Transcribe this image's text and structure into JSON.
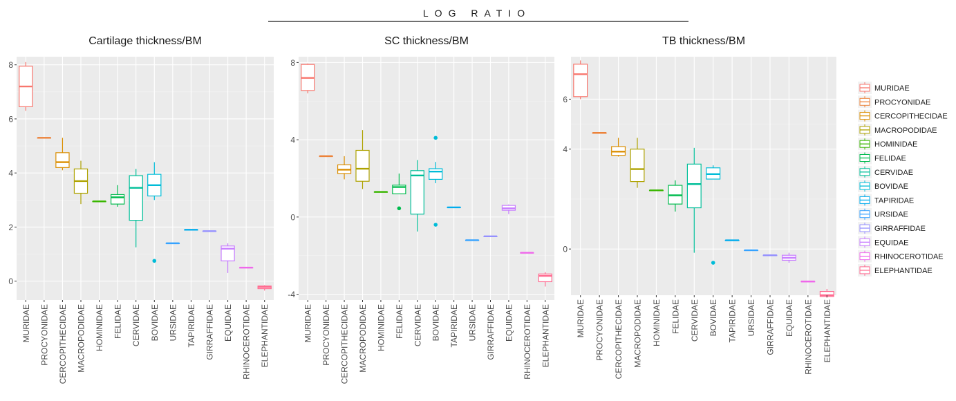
{
  "figure": {
    "title": "LOG RATIO"
  },
  "chart_data": [
    {
      "type": "boxplot",
      "title": "Cartilage thickness/BM",
      "ylim": [
        -0.7,
        8.3
      ],
      "yticks": [
        0,
        2,
        4,
        6,
        8
      ],
      "grid": true,
      "categories": [
        "MURIDAE",
        "PROCYONIDAE",
        "CERCOPITHECIDAE",
        "MACROPODIDAE",
        "HOMINIDAE",
        "FELIDAE",
        "CERVIDAE",
        "BOVIDAE",
        "URSIDAE",
        "TAPIRIDAE",
        "GIRRAFFIDAE",
        "EQUIDAE",
        "RHINOCEROTIDAE",
        "ELEPHANTIDAE"
      ],
      "boxes": [
        {
          "min": 6.3,
          "q1": 6.45,
          "median": 7.2,
          "q3": 7.95,
          "max": 8.1,
          "outliers": []
        },
        {
          "min": 5.3,
          "q1": 5.3,
          "median": 5.3,
          "q3": 5.3,
          "max": 5.3,
          "outliers": []
        },
        {
          "min": 4.1,
          "q1": 4.2,
          "median": 4.4,
          "q3": 4.75,
          "max": 5.3,
          "outliers": []
        },
        {
          "min": 2.85,
          "q1": 3.25,
          "median": 3.7,
          "q3": 4.15,
          "max": 4.45,
          "outliers": []
        },
        {
          "min": 2.95,
          "q1": 2.95,
          "median": 2.95,
          "q3": 2.95,
          "max": 2.95,
          "outliers": []
        },
        {
          "min": 2.75,
          "q1": 2.85,
          "median": 3.1,
          "q3": 3.2,
          "max": 3.55,
          "outliers": []
        },
        {
          "min": 1.25,
          "q1": 2.25,
          "median": 3.45,
          "q3": 3.9,
          "max": 4.15,
          "outliers": []
        },
        {
          "min": 3.0,
          "q1": 3.15,
          "median": 3.55,
          "q3": 3.95,
          "max": 4.4,
          "outliers": [
            0.75
          ]
        },
        {
          "min": 1.4,
          "q1": 1.4,
          "median": 1.4,
          "q3": 1.4,
          "max": 1.4,
          "outliers": []
        },
        {
          "min": 1.9,
          "q1": 1.9,
          "median": 1.9,
          "q3": 1.9,
          "max": 1.9,
          "outliers": []
        },
        {
          "min": 1.85,
          "q1": 1.85,
          "median": 1.85,
          "q3": 1.85,
          "max": 1.85,
          "outliers": []
        },
        {
          "min": 0.3,
          "q1": 0.75,
          "median": 1.2,
          "q3": 1.3,
          "max": 1.4,
          "outliers": []
        },
        {
          "min": 0.5,
          "q1": 0.5,
          "median": 0.5,
          "q3": 0.5,
          "max": 0.5,
          "outliers": []
        },
        {
          "min": -0.35,
          "q1": -0.28,
          "median": -0.22,
          "q3": -0.18,
          "max": -0.15,
          "outliers": []
        }
      ]
    },
    {
      "type": "boxplot",
      "title": "SC thickness/BM",
      "ylim": [
        -4.3,
        8.3
      ],
      "yticks": [
        -4,
        0,
        4,
        8
      ],
      "grid": true,
      "categories": [
        "MURIDAE",
        "PROCYONIDAE",
        "CERCOPITHECIDAE",
        "MACROPODIDAE",
        "HOMINIDAE",
        "FELIDAE",
        "CERVIDAE",
        "BOVIDAE",
        "TAPIRIDAE",
        "URSIDAE",
        "GIRRAFFIDAE",
        "EQUIDAE",
        "RHINOCEROTIDAE",
        "ELEPHANTIDAE"
      ],
      "boxes": [
        {
          "min": 6.4,
          "q1": 6.55,
          "median": 7.2,
          "q3": 7.9,
          "max": 7.95,
          "outliers": []
        },
        {
          "min": 3.15,
          "q1": 3.15,
          "median": 3.15,
          "q3": 3.15,
          "max": 3.15,
          "outliers": []
        },
        {
          "min": 1.95,
          "q1": 2.25,
          "median": 2.45,
          "q3": 2.7,
          "max": 3.15,
          "outliers": []
        },
        {
          "min": 1.45,
          "q1": 1.85,
          "median": 2.5,
          "q3": 3.45,
          "max": 4.5,
          "outliers": []
        },
        {
          "min": 1.3,
          "q1": 1.3,
          "median": 1.3,
          "q3": 1.3,
          "max": 1.3,
          "outliers": []
        },
        {
          "min": 1.2,
          "q1": 1.2,
          "median": 1.55,
          "q3": 1.65,
          "max": 2.25,
          "outliers": [
            0.45
          ]
        },
        {
          "min": -0.75,
          "q1": 0.15,
          "median": 2.15,
          "q3": 2.4,
          "max": 2.95,
          "outliers": []
        },
        {
          "min": 1.75,
          "q1": 1.95,
          "median": 2.35,
          "q3": 2.5,
          "max": 2.85,
          "outliers": [
            4.1,
            -0.4
          ]
        },
        {
          "min": 0.5,
          "q1": 0.5,
          "median": 0.5,
          "q3": 0.5,
          "max": 0.5,
          "outliers": []
        },
        {
          "min": -1.2,
          "q1": -1.2,
          "median": -1.2,
          "q3": -1.2,
          "max": -1.2,
          "outliers": []
        },
        {
          "min": -1.0,
          "q1": -1.0,
          "median": -1.0,
          "q3": -1.0,
          "max": -1.0,
          "outliers": []
        },
        {
          "min": 0.15,
          "q1": 0.35,
          "median": 0.45,
          "q3": 0.6,
          "max": 0.65,
          "outliers": []
        },
        {
          "min": -1.85,
          "q1": -1.85,
          "median": -1.85,
          "q3": -1.85,
          "max": -1.85,
          "outliers": []
        },
        {
          "min": -3.6,
          "q1": -3.35,
          "median": -3.05,
          "q3": -2.95,
          "max": -2.85,
          "outliers": []
        }
      ]
    },
    {
      "type": "boxplot",
      "title": "TB thickness/BM",
      "ylim": [
        -1.85,
        7.7
      ],
      "yticks": [
        0,
        4,
        6
      ],
      "grid": true,
      "categories": [
        "MURIDAE",
        "PROCYONIDAE",
        "CERCOPITHECIDAE",
        "MACROPODIDAE",
        "HOMINIDAE",
        "FELIDAE",
        "CERVIDAE",
        "BOVIDAE",
        "TAPIRIDAE",
        "URSIDAE",
        "GIRRAFFIDAE",
        "EQUIDAE",
        "RHINOCEROTIDAE",
        "ELEPHANTIDAE"
      ],
      "boxes": [
        {
          "min": 6.0,
          "q1": 6.1,
          "median": 7.0,
          "q3": 7.4,
          "max": 7.55,
          "outliers": []
        },
        {
          "min": 4.65,
          "q1": 4.65,
          "median": 4.65,
          "q3": 4.65,
          "max": 4.65,
          "outliers": []
        },
        {
          "min": 3.7,
          "q1": 3.75,
          "median": 3.9,
          "q3": 4.1,
          "max": 4.45,
          "outliers": []
        },
        {
          "min": 2.45,
          "q1": 2.7,
          "median": 3.2,
          "q3": 4.0,
          "max": 4.45,
          "outliers": []
        },
        {
          "min": 2.35,
          "q1": 2.35,
          "median": 2.35,
          "q3": 2.35,
          "max": 2.35,
          "outliers": []
        },
        {
          "min": 1.5,
          "q1": 1.8,
          "median": 2.15,
          "q3": 2.55,
          "max": 2.75,
          "outliers": []
        },
        {
          "min": -0.15,
          "q1": 1.65,
          "median": 2.6,
          "q3": 3.4,
          "max": 4.05,
          "outliers": []
        },
        {
          "min": 2.8,
          "q1": 2.8,
          "median": 3.0,
          "q3": 3.25,
          "max": 3.35,
          "outliers": [
            -0.55
          ]
        },
        {
          "min": 0.35,
          "q1": 0.35,
          "median": 0.35,
          "q3": 0.35,
          "max": 0.35,
          "outliers": []
        },
        {
          "min": -0.05,
          "q1": -0.05,
          "median": -0.05,
          "q3": -0.05,
          "max": -0.05,
          "outliers": []
        },
        {
          "min": -0.25,
          "q1": -0.25,
          "median": -0.25,
          "q3": -0.25,
          "max": -0.25,
          "outliers": []
        },
        {
          "min": -0.55,
          "q1": -0.45,
          "median": -0.35,
          "q3": -0.25,
          "max": -0.15,
          "outliers": []
        },
        {
          "min": -1.3,
          "q1": -1.3,
          "median": -1.3,
          "q3": -1.3,
          "max": -1.3,
          "outliers": []
        },
        {
          "min": -1.95,
          "q1": -1.9,
          "median": -1.85,
          "q3": -1.7,
          "max": -1.6,
          "outliers": []
        }
      ]
    }
  ],
  "legend": {
    "position": "right",
    "entries": [
      {
        "label": "MURIDAE",
        "color": "#f8766d"
      },
      {
        "label": "PROCYONIDAE",
        "color": "#ec8239"
      },
      {
        "label": "CERCOPITHECIDAE",
        "color": "#db8e00"
      },
      {
        "label": "MACROPODIDAE",
        "color": "#aea200"
      },
      {
        "label": "HOMINIDAE",
        "color": "#39b600"
      },
      {
        "label": "FELIDAE",
        "color": "#00bb4e"
      },
      {
        "label": "CERVIDAE",
        "color": "#00bf99"
      },
      {
        "label": "BOVIDAE",
        "color": "#00bcd8"
      },
      {
        "label": "TAPIRIDAE",
        "color": "#00aced"
      },
      {
        "label": "URSIDAE",
        "color": "#35a2ff"
      },
      {
        "label": "GIRRAFFIDAE",
        "color": "#9590ff"
      },
      {
        "label": "EQUIDAE",
        "color": "#c77cff"
      },
      {
        "label": "RHINOCEROTIDAE",
        "color": "#ef67eb"
      },
      {
        "label": "ELEPHANTIDAE",
        "color": "#ff6c91"
      }
    ]
  },
  "colors": {
    "panel_bg": "#ebebeb",
    "grid_major": "#ffffff",
    "grid_minor": "#f4f4f4",
    "axis_text": "#4d4d4d",
    "title_text": "#1a1a1a"
  }
}
